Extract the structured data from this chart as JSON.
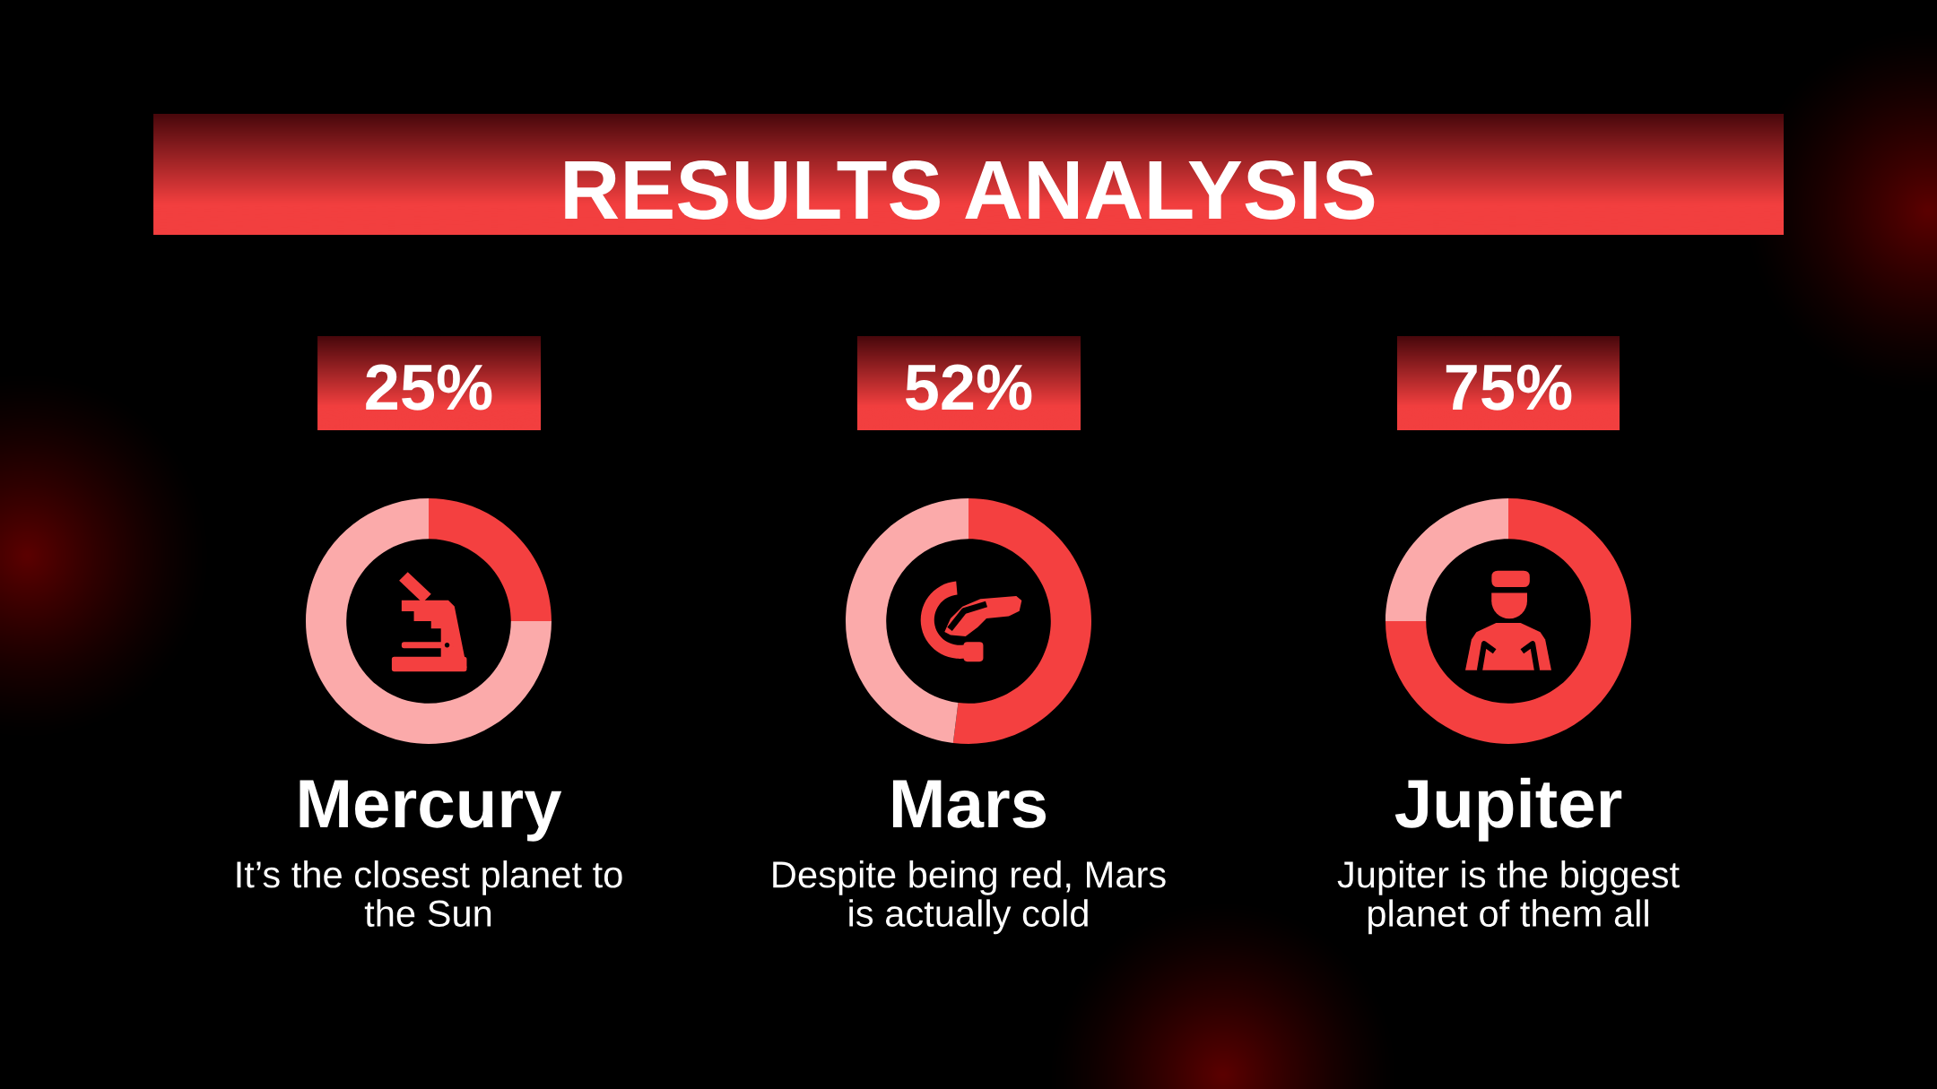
{
  "chart_data": [
    {
      "type": "other",
      "title": "RESULTS ANALYSIS"
    },
    {
      "type": "donut",
      "title": "Mercury",
      "subtitle": "It’s the closest planet to\nthe Sun",
      "categories": [
        null,
        null
      ],
      "values": [
        25,
        75
      ],
      "colors": [
        "#f44040",
        "#fbaaaa"
      ],
      "value_labels": [
        "25%",
        null
      ]
    },
    {
      "type": "donut",
      "title": "Mars",
      "subtitle": "Despite being red, Mars\nis actually cold",
      "categories": [
        null,
        null
      ],
      "values": [
        52,
        48
      ],
      "colors": [
        "#f44040",
        "#fbaaaa"
      ],
      "value_labels": [
        "52%",
        null
      ]
    },
    {
      "type": "donut",
      "title": "Jupiter",
      "subtitle": "Jupiter is the biggest\nplanet of them all",
      "categories": [
        null,
        null
      ],
      "values": [
        75,
        25
      ],
      "colors": [
        "#f44040",
        "#fbaaaa"
      ],
      "value_labels": [
        "75%",
        null
      ]
    }
  ]
}
